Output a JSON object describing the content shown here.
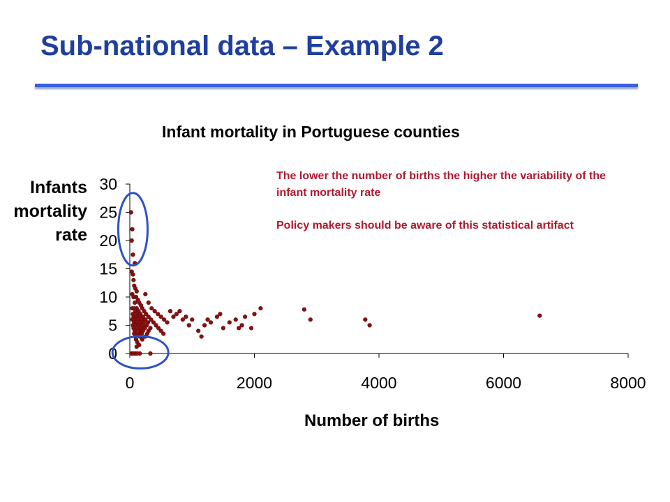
{
  "slide": {
    "title": "Sub-national data – Example 2"
  },
  "annotations": {
    "note1": "The lower the number of births the higher the variability of the infant mortality rate",
    "note2": "Policy makers should be aware of this statistical artifact"
  },
  "colors": {
    "title": "#1f3f9f",
    "rule": "#3860e0",
    "points": "#8b1010",
    "annotation": "#b0182e",
    "highlight_ellipse": "#2c52c8"
  },
  "chart_data": {
    "type": "scatter",
    "title": "Infant mortality in Portuguese counties",
    "ylabel_lines": [
      "Infants",
      "mortality",
      "rate"
    ],
    "xlabel": "Number of births",
    "xlim": [
      0,
      8000
    ],
    "ylim": [
      0,
      30
    ],
    "xticks": [
      0,
      2000,
      4000,
      6000,
      8000
    ],
    "yticks": [
      0,
      5,
      10,
      15,
      20,
      25,
      30
    ],
    "grid": false,
    "legend": "none",
    "highlights": [
      "ellipse around low-birth counties with high rates (y 17–27)",
      "ellipse around low-birth counties with near-zero rates"
    ],
    "points": [
      [
        20,
        25.0
      ],
      [
        40,
        22.0
      ],
      [
        30,
        20.0
      ],
      [
        50,
        17.5
      ],
      [
        80,
        16.0
      ],
      [
        30,
        14.5
      ],
      [
        50,
        14.0
      ],
      [
        60,
        13.0
      ],
      [
        70,
        12.0
      ],
      [
        90,
        11.5
      ],
      [
        110,
        11.0
      ],
      [
        40,
        10.5
      ],
      [
        60,
        10.0
      ],
      [
        100,
        10.0
      ],
      [
        130,
        9.5
      ],
      [
        80,
        9.0
      ],
      [
        150,
        9.0
      ],
      [
        180,
        8.5
      ],
      [
        40,
        8.0
      ],
      [
        70,
        8.0
      ],
      [
        110,
        8.0
      ],
      [
        200,
        8.0
      ],
      [
        90,
        7.5
      ],
      [
        140,
        7.5
      ],
      [
        230,
        7.5
      ],
      [
        50,
        7.0
      ],
      [
        120,
        7.0
      ],
      [
        170,
        7.0
      ],
      [
        260,
        7.0
      ],
      [
        60,
        6.5
      ],
      [
        100,
        6.5
      ],
      [
        150,
        6.5
      ],
      [
        210,
        6.5
      ],
      [
        300,
        6.5
      ],
      [
        40,
        6.0
      ],
      [
        80,
        6.0
      ],
      [
        130,
        6.0
      ],
      [
        190,
        6.0
      ],
      [
        250,
        6.0
      ],
      [
        340,
        6.0
      ],
      [
        70,
        5.5
      ],
      [
        110,
        5.5
      ],
      [
        160,
        5.5
      ],
      [
        220,
        5.5
      ],
      [
        290,
        5.5
      ],
      [
        380,
        5.5
      ],
      [
        50,
        5.0
      ],
      [
        90,
        5.0
      ],
      [
        140,
        5.0
      ],
      [
        200,
        5.0
      ],
      [
        270,
        5.0
      ],
      [
        420,
        5.0
      ],
      [
        60,
        4.5
      ],
      [
        120,
        4.5
      ],
      [
        180,
        4.5
      ],
      [
        240,
        4.5
      ],
      [
        330,
        4.5
      ],
      [
        460,
        4.5
      ],
      [
        80,
        4.0
      ],
      [
        150,
        4.0
      ],
      [
        210,
        4.0
      ],
      [
        300,
        4.0
      ],
      [
        500,
        4.0
      ],
      [
        70,
        3.5
      ],
      [
        130,
        3.5
      ],
      [
        190,
        3.5
      ],
      [
        280,
        3.5
      ],
      [
        540,
        3.5
      ],
      [
        90,
        3.0
      ],
      [
        160,
        3.0
      ],
      [
        250,
        3.0
      ],
      [
        100,
        2.5
      ],
      [
        200,
        2.5
      ],
      [
        120,
        2.0
      ],
      [
        150,
        1.5
      ],
      [
        110,
        1.2
      ],
      [
        30,
        0.0
      ],
      [
        60,
        0.0
      ],
      [
        90,
        0.0
      ],
      [
        120,
        0.0
      ],
      [
        160,
        0.0
      ],
      [
        330,
        0.0
      ],
      [
        250,
        10.5
      ],
      [
        300,
        9.0
      ],
      [
        350,
        8.0
      ],
      [
        400,
        7.5
      ],
      [
        450,
        7.0
      ],
      [
        500,
        6.5
      ],
      [
        550,
        6.0
      ],
      [
        600,
        5.5
      ],
      [
        650,
        7.5
      ],
      [
        700,
        6.5
      ],
      [
        750,
        7.0
      ],
      [
        800,
        7.5
      ],
      [
        850,
        6.0
      ],
      [
        900,
        6.5
      ],
      [
        950,
        5.0
      ],
      [
        1000,
        6.0
      ],
      [
        1100,
        4.0
      ],
      [
        1150,
        3.0
      ],
      [
        1200,
        5.0
      ],
      [
        1250,
        6.0
      ],
      [
        1300,
        5.5
      ],
      [
        1400,
        6.5
      ],
      [
        1450,
        7.0
      ],
      [
        1500,
        4.5
      ],
      [
        1600,
        5.5
      ],
      [
        1700,
        6.0
      ],
      [
        1750,
        4.5
      ],
      [
        1800,
        5.0
      ],
      [
        1850,
        6.5
      ],
      [
        1950,
        4.5
      ],
      [
        2000,
        7.0
      ],
      [
        2100,
        8.0
      ],
      [
        2800,
        7.8
      ],
      [
        2900,
        6.0
      ],
      [
        3780,
        6.0
      ],
      [
        3850,
        5.0
      ],
      [
        6580,
        6.7
      ]
    ]
  }
}
